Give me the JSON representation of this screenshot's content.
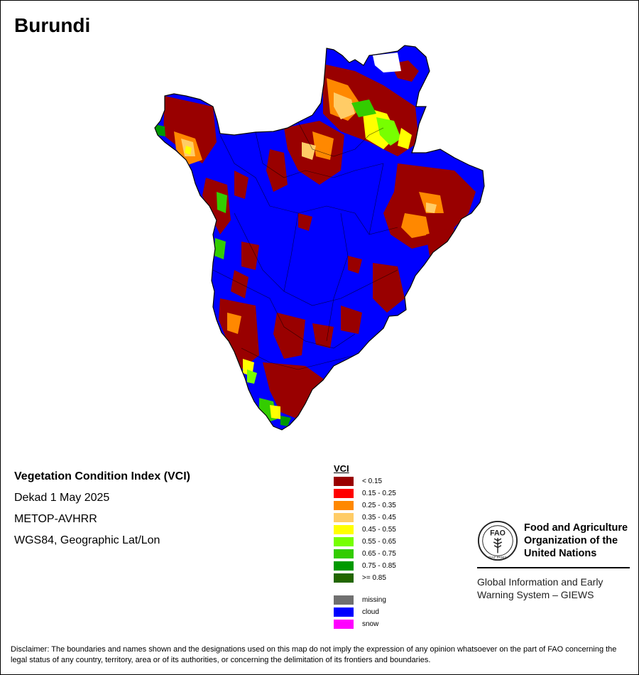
{
  "map": {
    "title": "Burundi",
    "index_title": "Vegetation Condition Index (VCI)",
    "period": "Dekad 1 May 2025",
    "sensor": "METOP-AVHRR",
    "projection": "WGS84, Geographic Lat/Lon"
  },
  "legend": {
    "title": "VCI",
    "classes": [
      {
        "label": "< 0.15",
        "color": "#990000"
      },
      {
        "label": "0.15 - 0.25",
        "color": "#ff0000"
      },
      {
        "label": "0.25 - 0.35",
        "color": "#ff8800"
      },
      {
        "label": "0.35 - 0.45",
        "color": "#ffcc66"
      },
      {
        "label": "0.45 - 0.55",
        "color": "#ffff00"
      },
      {
        "label": "0.55 - 0.65",
        "color": "#77ff00"
      },
      {
        "label": "0.65 - 0.75",
        "color": "#33cc00"
      },
      {
        "label": "0.75 - 0.85",
        "color": "#009900"
      },
      {
        "label": ">= 0.85",
        "color": "#226600"
      }
    ],
    "extra": [
      {
        "label": "missing",
        "color": "#707070"
      },
      {
        "label": "cloud",
        "color": "#0000ff"
      },
      {
        "label": "snow",
        "color": "#ff00ff"
      }
    ]
  },
  "organization": {
    "name_line1": "Food and Agriculture",
    "name_line2": "Organization of the",
    "name_line3": "United Nations",
    "logo_text": "FAO",
    "logo_motto": "FIAT PANIS",
    "system_line1": "Global Information and Early",
    "system_line2": "Warning System – GIEWS"
  },
  "disclaimer": "Disclaimer: The boundaries and names shown and the designations used on this map do not imply the expression of any opinion whatsoever on the part of FAO concerning the legal status of any country, territory, area or of its authorities, or concerning the delimitation of its frontiers and boundaries."
}
